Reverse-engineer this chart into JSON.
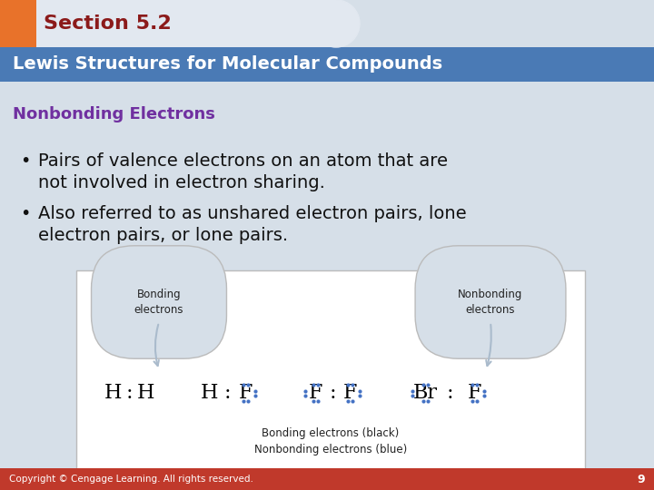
{
  "bg_color": "#d6dfe8",
  "orange_color": "#e8722a",
  "section_text": "Section 5.2",
  "section_text_color": "#8b1a1a",
  "title_bar_color": "#4a7ab5",
  "title_text": "Lewis Structures for Molecular Compounds",
  "title_text_color": "#ffffff",
  "subtitle_text": "Nonbonding Electrons",
  "subtitle_color": "#7030a0",
  "bullet1_line1": "Pairs of valence electrons on an atom that are",
  "bullet1_line2": "not involved in electron sharing.",
  "bullet2_line1": "Also referred to as unshared electron pairs, lone",
  "bullet2_line2": "electron pairs, or lone pairs.",
  "bullet_color": "#111111",
  "footer_text": "Copyright © Cengage Learning. All rights reserved.",
  "footer_number": "9",
  "footer_bg": "#c0392b",
  "footer_text_color": "#ffffff",
  "diagram_bg": "#ffffff",
  "diagram_border": "#bbbbbb",
  "label_bg": "#d6dfe8",
  "bonding_label": "Bonding\nelectrons",
  "nonbonding_label": "Nonbonding\nelectrons",
  "arrow_color": "#aabbcc",
  "dot_color_blue": "#4472c4",
  "caption1": "Bonding electrons (black)",
  "caption2": "Nonbonding electrons (blue)",
  "tab_light_bg": "#e2e8f0"
}
